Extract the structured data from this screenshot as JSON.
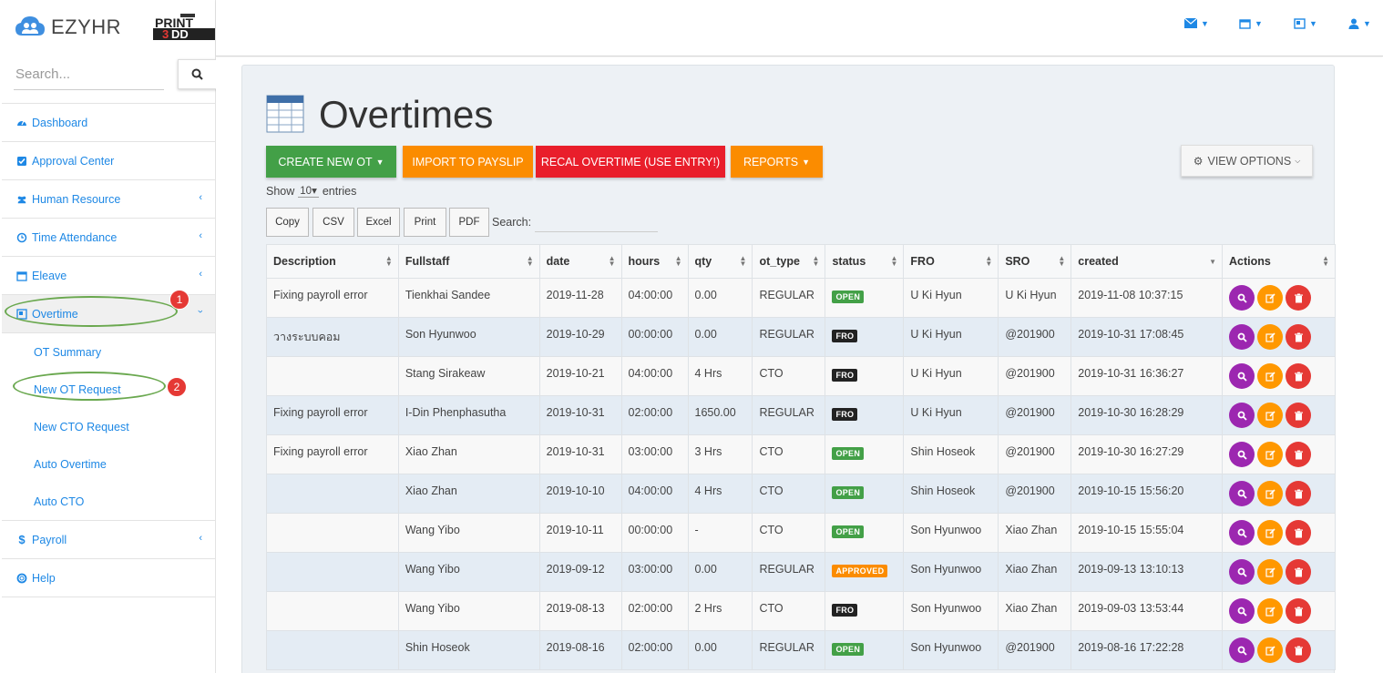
{
  "brand": {
    "name": "EZYHR",
    "logo2_text": "PRINT 3DD"
  },
  "search": {
    "placeholder": "Search..."
  },
  "nav": [
    {
      "label": "Dashboard",
      "icon": "dashboard-icon",
      "chevron": false
    },
    {
      "label": "Approval Center",
      "icon": "check-square-icon",
      "chevron": false
    },
    {
      "label": "Human Resource",
      "icon": "users-icon",
      "chevron": true
    },
    {
      "label": "Time Attendance",
      "icon": "clock-icon",
      "chevron": true
    },
    {
      "label": "Eleave",
      "icon": "calendar-icon",
      "chevron": true
    }
  ],
  "overtime": {
    "label": "Overtime",
    "sub": [
      "OT Summary",
      "New OT Request",
      "New CTO Request",
      "Auto Overtime",
      "Auto CTO"
    ]
  },
  "nav_bottom": [
    {
      "label": "Payroll",
      "icon": "dollar-icon"
    },
    {
      "label": "Help",
      "icon": "help-icon"
    }
  ],
  "annotations": {
    "one": "1",
    "two": "2"
  },
  "page": {
    "title": "Overtimes",
    "buttons": {
      "create": "CREATE NEW OT",
      "import": "IMPORT TO PAYSLIP",
      "recal": "RECAL OVERTIME (USE ENTRY!)",
      "reports": "REPORTS",
      "view_options": "VIEW OPTIONS"
    },
    "show": "Show",
    "entries_value": "10",
    "entries": "entries",
    "export": [
      "Copy",
      "CSV",
      "Excel",
      "Print",
      "PDF"
    ],
    "search_label": "Search:"
  },
  "colors": {
    "open": "#43a047",
    "fro": "#222222",
    "approved": "#fb8c00",
    "accent": "#1e88e5"
  },
  "table": {
    "headers": [
      "Description",
      "Fullstaff",
      "date",
      "hours",
      "qty",
      "ot_type",
      "status",
      "FRO",
      "SRO",
      "created",
      "Actions"
    ],
    "rows": [
      {
        "description": "Fixing payroll error",
        "fullstaff": "Tienkhai Sandee",
        "date": "2019-11-28",
        "hours": "04:00:00",
        "qty": "0.00",
        "ot_type": "REGULAR",
        "status": "OPEN",
        "fro": "U Ki Hyun",
        "sro": "U Ki Hyun",
        "created": "2019-11-08 10:37:15"
      },
      {
        "description": "วางระบบคอม",
        "fullstaff": "Son Hyunwoo",
        "date": "2019-10-29",
        "hours": "00:00:00",
        "qty": "0.00",
        "ot_type": "REGULAR",
        "status": "FRO",
        "fro": "U Ki Hyun",
        "sro": "@201900",
        "created": "2019-10-31 17:08:45"
      },
      {
        "description": "",
        "fullstaff": "Stang Sirakeaw",
        "date": "2019-10-21",
        "hours": "04:00:00",
        "qty": "4 Hrs",
        "ot_type": "CTO",
        "status": "FRO",
        "fro": "U Ki Hyun",
        "sro": "@201900",
        "created": "2019-10-31 16:36:27"
      },
      {
        "description": "Fixing payroll error",
        "fullstaff": "I-Din Phenphasutha",
        "date": "2019-10-31",
        "hours": "02:00:00",
        "qty": "1650.00",
        "ot_type": "REGULAR",
        "status": "FRO",
        "fro": "U Ki Hyun",
        "sro": "@201900",
        "created": "2019-10-30 16:28:29"
      },
      {
        "description": "Fixing payroll error",
        "fullstaff": "Xiao Zhan",
        "date": "2019-10-31",
        "hours": "03:00:00",
        "qty": "3 Hrs",
        "ot_type": "CTO",
        "status": "OPEN",
        "fro": "Shin Hoseok",
        "sro": "@201900",
        "created": "2019-10-30 16:27:29"
      },
      {
        "description": "",
        "fullstaff": "Xiao Zhan",
        "date": "2019-10-10",
        "hours": "04:00:00",
        "qty": "4 Hrs",
        "ot_type": "CTO",
        "status": "OPEN",
        "fro": "Shin Hoseok",
        "sro": "@201900",
        "created": "2019-10-15 15:56:20"
      },
      {
        "description": "",
        "fullstaff": "Wang Yibo",
        "date": "2019-10-11",
        "hours": "00:00:00",
        "qty": "-",
        "ot_type": "CTO",
        "status": "OPEN",
        "fro": "Son Hyunwoo",
        "sro": "Xiao Zhan",
        "created": "2019-10-15 15:55:04"
      },
      {
        "description": "",
        "fullstaff": "Wang Yibo",
        "date": "2019-09-12",
        "hours": "03:00:00",
        "qty": "0.00",
        "ot_type": "REGULAR",
        "status": "APPROVED",
        "fro": "Son Hyunwoo",
        "sro": "Xiao Zhan",
        "created": "2019-09-13 13:10:13"
      },
      {
        "description": "",
        "fullstaff": "Wang Yibo",
        "date": "2019-08-13",
        "hours": "02:00:00",
        "qty": "2 Hrs",
        "ot_type": "CTO",
        "status": "FRO",
        "fro": "Son Hyunwoo",
        "sro": "Xiao Zhan",
        "created": "2019-09-03 13:53:44"
      },
      {
        "description": "",
        "fullstaff": "Shin Hoseok",
        "date": "2019-08-16",
        "hours": "02:00:00",
        "qty": "0.00",
        "ot_type": "REGULAR",
        "status": "OPEN",
        "fro": "Son Hyunwoo",
        "sro": "@201900",
        "created": "2019-08-16 17:22:28"
      }
    ]
  }
}
